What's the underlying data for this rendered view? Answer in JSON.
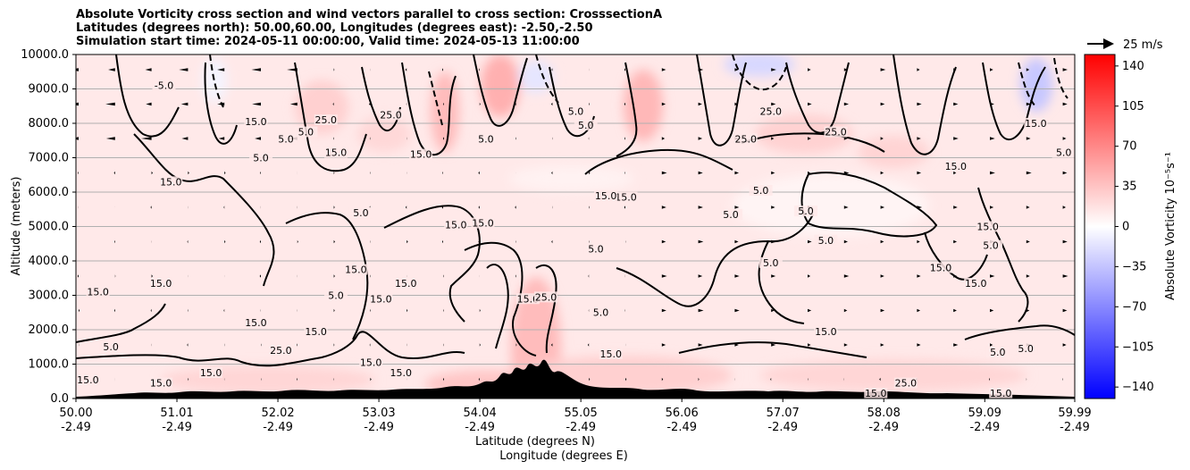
{
  "chart_data": {
    "type": "contour",
    "title_lines": [
      "Absolute Vorticity cross section and wind vectors parallel to cross section: CrosssectionA",
      "Latitudes (degrees north): 50.00,60.00, Longitudes (degrees east): -2.50,-2.50",
      "Simulation start time: 2024-05-11 00:00:00, Valid time: 2024-05-13 11:00:00"
    ],
    "xlabel_lat": "Latitude (degrees N)",
    "xlabel_lon": "Longitude (degrees E)",
    "ylabel": "Altitude (meters)",
    "x_ticks_lat": [
      "50.00",
      "51.01",
      "52.02",
      "53.03",
      "54.04",
      "55.05",
      "56.06",
      "57.07",
      "58.08",
      "59.09",
      "59.99"
    ],
    "x_ticks_lon": [
      "-2.49",
      "-2.49",
      "-2.49",
      "-2.49",
      "-2.49",
      "-2.49",
      "-2.49",
      "-2.49",
      "-2.49",
      "-2.49",
      "-2.49"
    ],
    "x_tick_values": [
      50.0,
      51.01,
      52.02,
      53.03,
      54.04,
      55.05,
      56.06,
      57.07,
      58.08,
      59.09,
      59.99
    ],
    "xlim": [
      50.0,
      59.99
    ],
    "y_ticks": [
      "0.0",
      "1000.0",
      "2000.0",
      "3000.0",
      "4000.0",
      "5000.0",
      "6000.0",
      "7000.0",
      "8000.0",
      "9000.0",
      "10000.0"
    ],
    "y_tick_values": [
      0,
      1000,
      2000,
      3000,
      4000,
      5000,
      6000,
      7000,
      8000,
      9000,
      10000
    ],
    "ylim": [
      0,
      10000
    ],
    "grid": "horizontal",
    "colorbar": {
      "label": "Absolute Vorticity 10⁻⁵s⁻¹",
      "ticks": [
        "140",
        "105",
        "70",
        "35",
        "0",
        "−35",
        "−70",
        "−105",
        "−140"
      ],
      "tick_values": [
        140,
        105,
        70,
        35,
        0,
        -35,
        -70,
        -105,
        -140
      ],
      "range": [
        -150,
        150
      ],
      "colormap": "bwr"
    },
    "quiver_key": "25 m/s",
    "contour_labels": [
      {
        "text": "-5.0",
        "x": 50.88,
        "y": 9050
      },
      {
        "text": "5.0",
        "x": 50.35,
        "y": 1450
      },
      {
        "text": "15.0",
        "x": 50.22,
        "y": 3050
      },
      {
        "text": "15.0",
        "x": 50.85,
        "y": 3300
      },
      {
        "text": "15.0",
        "x": 50.95,
        "y": 6250
      },
      {
        "text": "15.0",
        "x": 51.8,
        "y": 8000
      },
      {
        "text": "15.0",
        "x": 52.6,
        "y": 7100
      },
      {
        "text": "15.0",
        "x": 53.45,
        "y": 7050
      },
      {
        "text": "25.0",
        "x": 52.5,
        "y": 8050
      },
      {
        "text": "25.0",
        "x": 53.15,
        "y": 8200
      },
      {
        "text": "25.0",
        "x": 52.05,
        "y": 1350
      },
      {
        "text": "5.0",
        "x": 51.85,
        "y": 6950
      },
      {
        "text": "5.0",
        "x": 52.1,
        "y": 7500
      },
      {
        "text": "5.0",
        "x": 52.3,
        "y": 7700
      },
      {
        "text": "15.0",
        "x": 51.8,
        "y": 2150
      },
      {
        "text": "5.0",
        "x": 52.85,
        "y": 5350
      },
      {
        "text": "15.0",
        "x": 52.8,
        "y": 3700
      },
      {
        "text": "5.0",
        "x": 52.6,
        "y": 2950
      },
      {
        "text": "15.0",
        "x": 53.05,
        "y": 2850
      },
      {
        "text": "15.0",
        "x": 53.3,
        "y": 3300
      },
      {
        "text": "15.0",
        "x": 52.4,
        "y": 1900
      },
      {
        "text": "15.0",
        "x": 52.95,
        "y": 1000
      },
      {
        "text": "5.0",
        "x": 54.1,
        "y": 7500
      },
      {
        "text": "15.0",
        "x": 53.8,
        "y": 5000
      },
      {
        "text": "15.0",
        "x": 54.07,
        "y": 5050
      },
      {
        "text": "5.0",
        "x": 55.0,
        "y": 8300
      },
      {
        "text": "5.0",
        "x": 55.1,
        "y": 7900
      },
      {
        "text": "15.0",
        "x": 54.52,
        "y": 2850
      },
      {
        "text": "25.0",
        "x": 54.7,
        "y": 2900
      },
      {
        "text": "15.0",
        "x": 55.35,
        "y": 1250
      },
      {
        "text": "5.0",
        "x": 55.25,
        "y": 2450
      },
      {
        "text": "15.0",
        "x": 55.5,
        "y": 5800
      },
      {
        "text": "15.0",
        "x": 55.3,
        "y": 5850
      },
      {
        "text": "5.0",
        "x": 55.2,
        "y": 4300
      },
      {
        "text": "25.0",
        "x": 56.7,
        "y": 7500
      },
      {
        "text": "25.0",
        "x": 56.95,
        "y": 8300
      },
      {
        "text": "25.0",
        "x": 57.6,
        "y": 7700
      },
      {
        "text": "5.0",
        "x": 56.85,
        "y": 6000
      },
      {
        "text": "5.0",
        "x": 56.55,
        "y": 5300
      },
      {
        "text": "5.0",
        "x": 57.3,
        "y": 5400
      },
      {
        "text": "5.0",
        "x": 57.5,
        "y": 4550
      },
      {
        "text": "5.0",
        "x": 56.95,
        "y": 3900
      },
      {
        "text": "15.0",
        "x": 57.5,
        "y": 1900
      },
      {
        "text": "15.0",
        "x": 58.8,
        "y": 6700
      },
      {
        "text": "15.0",
        "x": 58.65,
        "y": 3750
      },
      {
        "text": "15.0",
        "x": 59.0,
        "y": 3300
      },
      {
        "text": "15.0",
        "x": 59.12,
        "y": 4950
      },
      {
        "text": "5.0",
        "x": 59.15,
        "y": 4400
      },
      {
        "text": "5.0",
        "x": 59.5,
        "y": 1400
      },
      {
        "text": "5.0",
        "x": 59.22,
        "y": 1300
      },
      {
        "text": "15.0",
        "x": 59.6,
        "y": 7950
      },
      {
        "text": "5.0",
        "x": 59.88,
        "y": 7100
      },
      {
        "text": "15.0",
        "x": 50.12,
        "y": 500
      },
      {
        "text": "15.0",
        "x": 50.85,
        "y": 400
      },
      {
        "text": "15.0",
        "x": 51.35,
        "y": 700
      },
      {
        "text": "15.0",
        "x": 53.25,
        "y": 700
      },
      {
        "text": "15.0",
        "x": 58.0,
        "y": 100
      },
      {
        "text": "15.0",
        "x": 59.25,
        "y": 100
      },
      {
        "text": "25.0",
        "x": 58.3,
        "y": 400
      }
    ]
  }
}
